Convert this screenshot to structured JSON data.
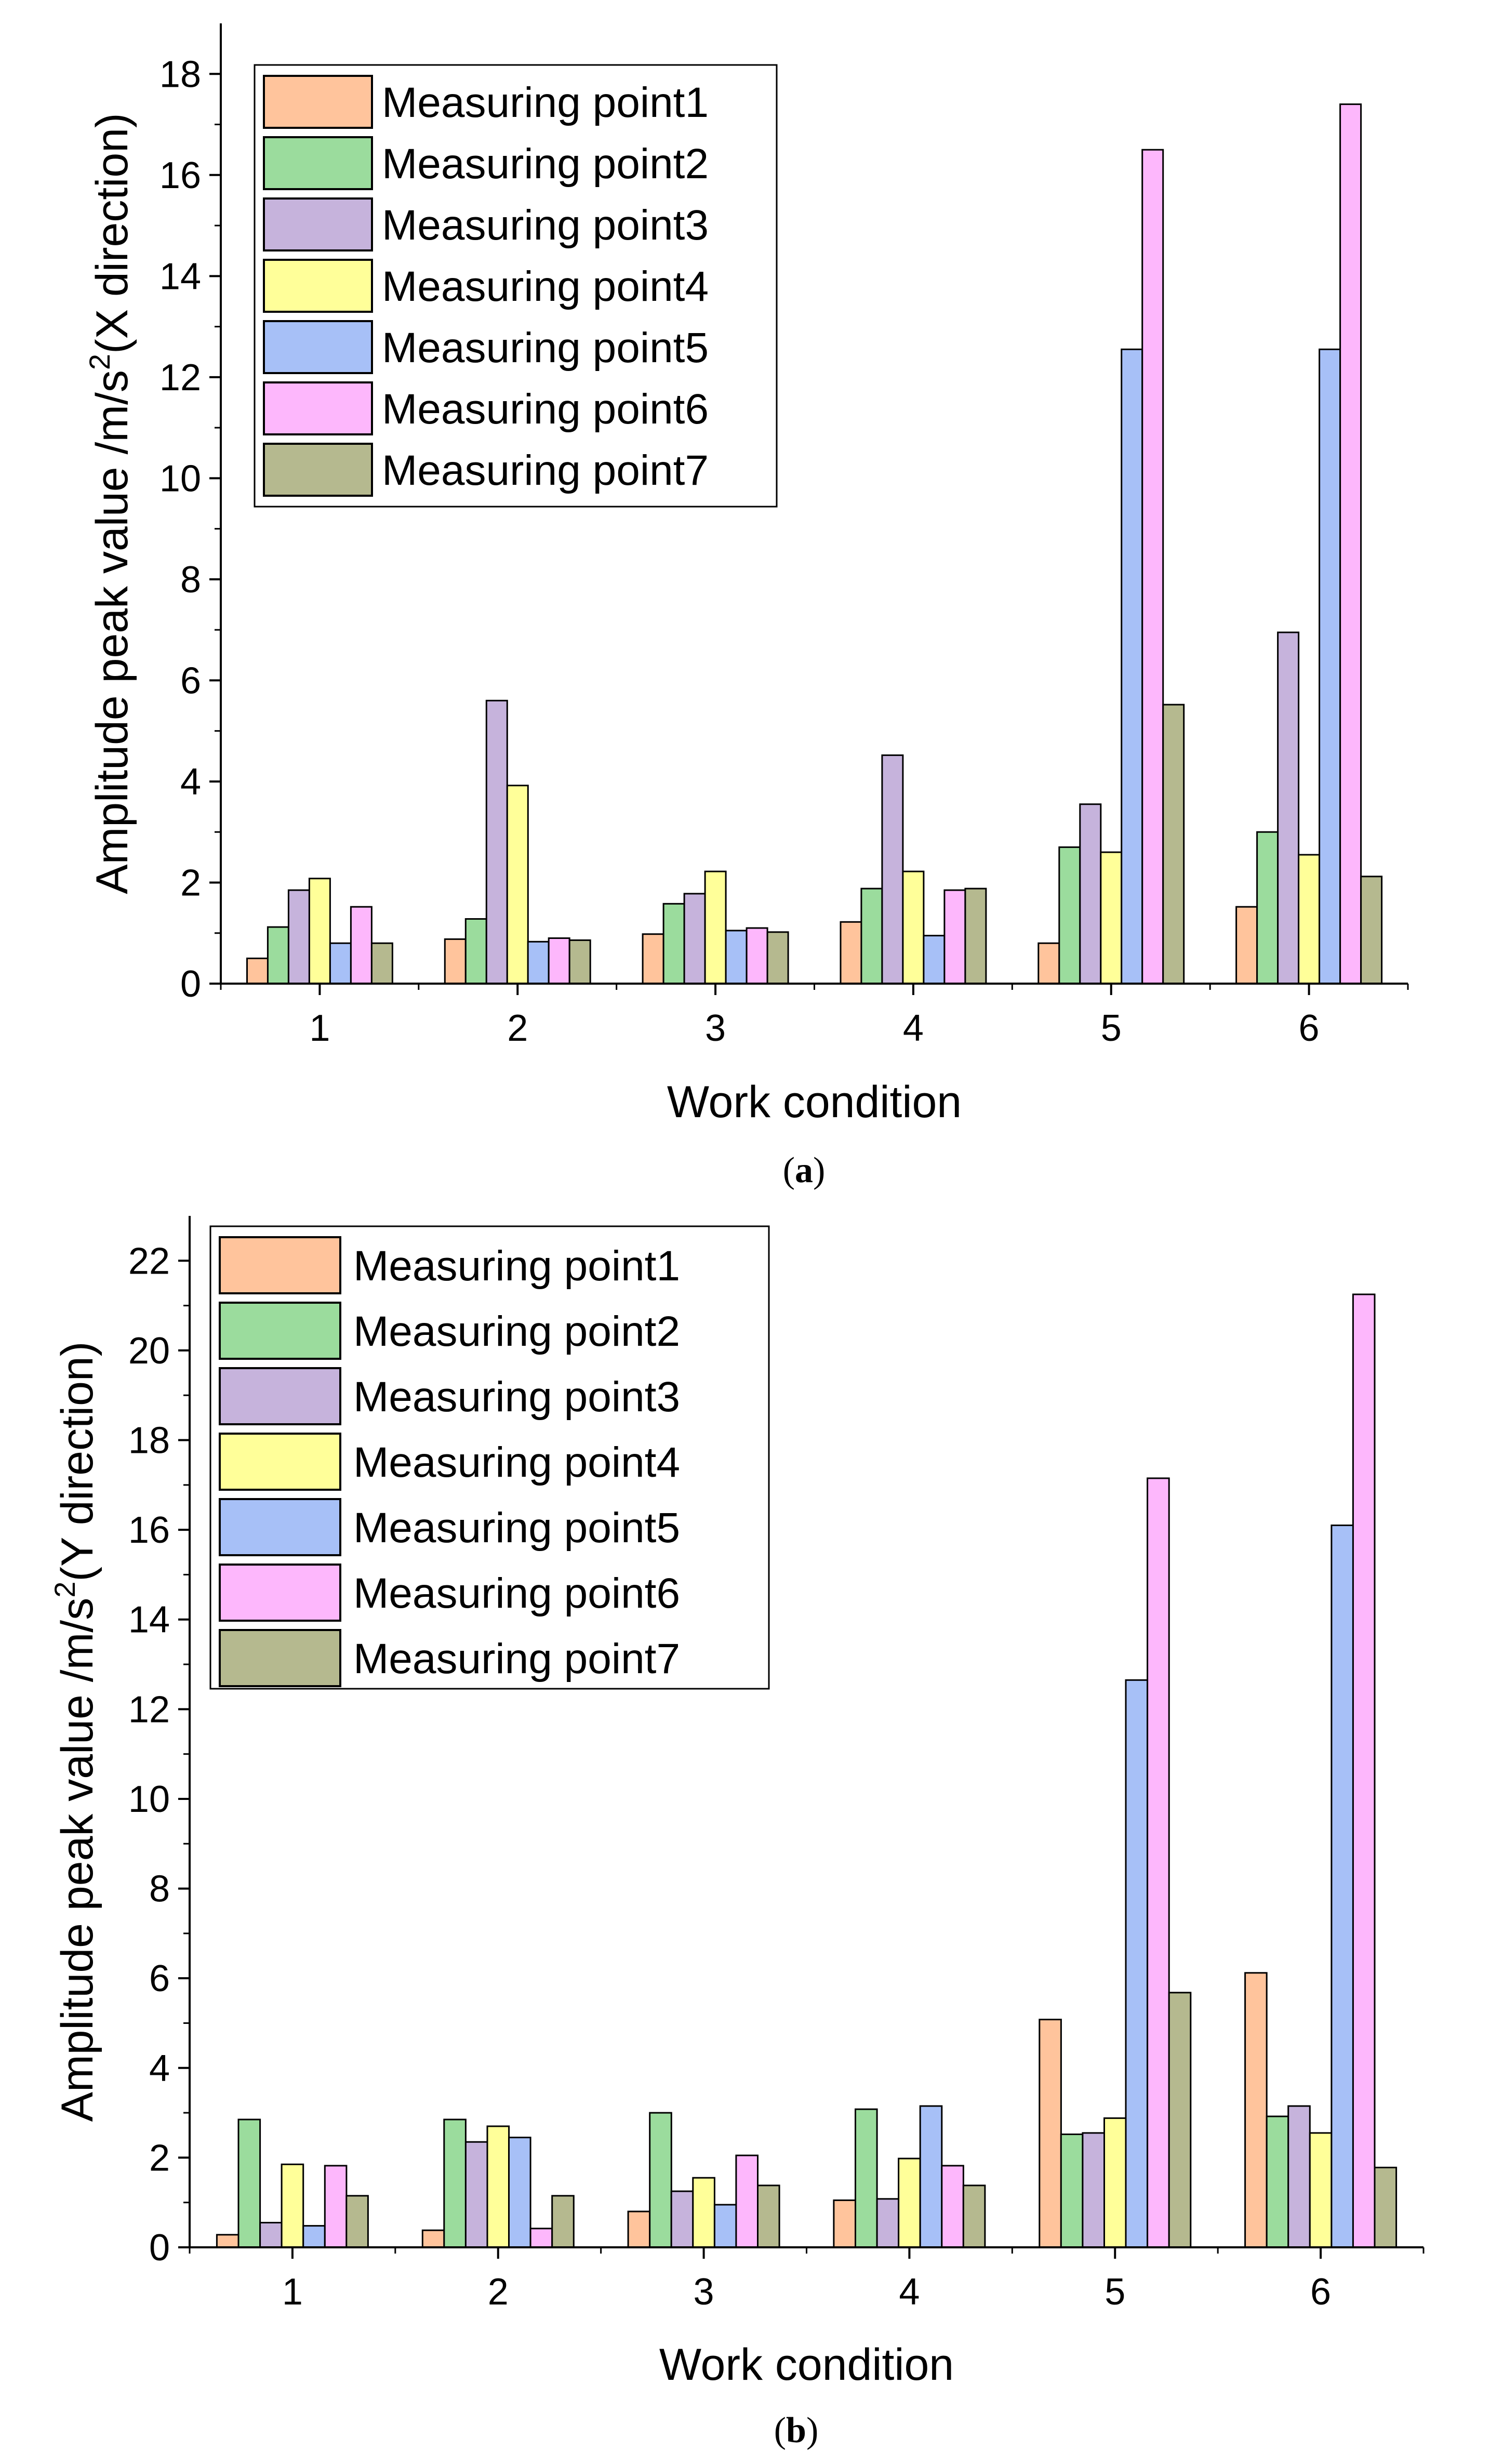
{
  "figure": {
    "colors": {
      "Measuring point1": "#ffc49c",
      "Measuring point2": "#9bdc9d",
      "Measuring point3": "#c6b3dc",
      "Measuring point4": "#ffff99",
      "Measuring point5": "#a7c0f7",
      "Measuring point6": "#fdb7fc",
      "Measuring point7": "#b5b98f"
    }
  },
  "chart_data": [
    {
      "id": "a",
      "type": "bar",
      "caption_letter": "a",
      "caption_open": "(",
      "caption_close": ")",
      "xlabel": "Work condition",
      "ylabel": "Amplitude peak value /m/s",
      "ylabel_sup": "2",
      "ylabel_tail": "(X direction)",
      "ylim": [
        0,
        19
      ],
      "yticks": [
        0,
        2,
        4,
        6,
        8,
        10,
        12,
        14,
        16,
        18
      ],
      "grid": false,
      "legend_position": "top-left",
      "categories": [
        "1",
        "2",
        "3",
        "4",
        "5",
        "6"
      ],
      "series": [
        {
          "name": "Measuring point1",
          "values": [
            0.5,
            0.88,
            0.98,
            1.22,
            0.8,
            1.52
          ]
        },
        {
          "name": "Measuring point2",
          "values": [
            1.12,
            1.28,
            1.58,
            1.88,
            2.7,
            3.0
          ]
        },
        {
          "name": "Measuring point3",
          "values": [
            1.85,
            5.6,
            1.78,
            4.52,
            3.55,
            6.95
          ]
        },
        {
          "name": "Measuring point4",
          "values": [
            2.08,
            3.92,
            2.22,
            2.22,
            2.6,
            2.55
          ]
        },
        {
          "name": "Measuring point5",
          "values": [
            0.8,
            0.83,
            1.05,
            0.95,
            12.55,
            12.55
          ]
        },
        {
          "name": "Measuring point6",
          "values": [
            1.52,
            0.9,
            1.1,
            1.85,
            16.5,
            17.4
          ]
        },
        {
          "name": "Measuring point7",
          "values": [
            0.8,
            0.86,
            1.02,
            1.88,
            5.52,
            2.12
          ]
        }
      ]
    },
    {
      "id": "b",
      "type": "bar",
      "caption_letter": "b",
      "caption_open": "(",
      "caption_close": ")",
      "xlabel": "Work condition",
      "ylabel": "Amplitude peak value /m/s",
      "ylabel_sup": "2",
      "ylabel_tail": "(Y direction)",
      "ylim": [
        0,
        23
      ],
      "yticks": [
        0,
        2,
        4,
        6,
        8,
        10,
        12,
        14,
        16,
        18,
        20,
        22
      ],
      "grid": false,
      "legend_position": "top-left",
      "categories": [
        "1",
        "2",
        "3",
        "4",
        "5",
        "6"
      ],
      "series": [
        {
          "name": "Measuring point1",
          "values": [
            0.28,
            0.38,
            0.8,
            1.05,
            5.08,
            6.12
          ]
        },
        {
          "name": "Measuring point2",
          "values": [
            2.85,
            2.85,
            3.0,
            3.08,
            2.52,
            2.92
          ]
        },
        {
          "name": "Measuring point3",
          "values": [
            0.55,
            2.35,
            1.25,
            1.08,
            2.55,
            3.15
          ]
        },
        {
          "name": "Measuring point4",
          "values": [
            1.85,
            2.7,
            1.55,
            1.98,
            2.88,
            2.55
          ]
        },
        {
          "name": "Measuring point5",
          "values": [
            0.48,
            2.45,
            0.95,
            3.15,
            12.65,
            16.1
          ]
        },
        {
          "name": "Measuring point6",
          "values": [
            1.82,
            0.42,
            2.05,
            1.82,
            17.15,
            21.25
          ]
        },
        {
          "name": "Measuring point7",
          "values": [
            1.15,
            1.15,
            1.38,
            1.38,
            5.68,
            1.78
          ]
        }
      ]
    }
  ]
}
